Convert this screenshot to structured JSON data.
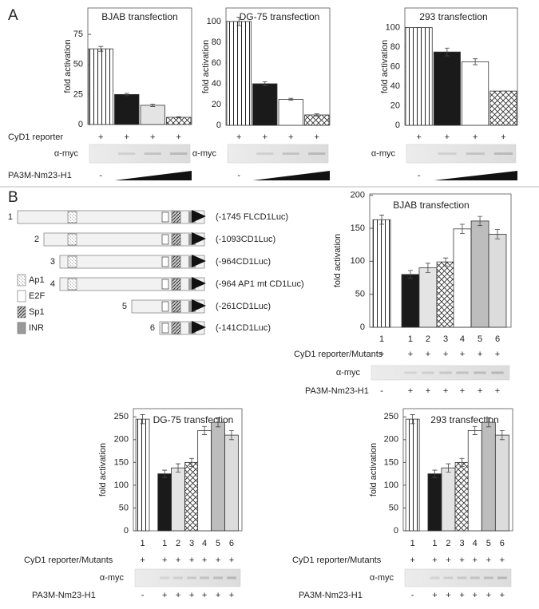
{
  "panel_labels": [
    "A",
    "B"
  ],
  "panel_a": {
    "reporter_label": "CyD1 reporter",
    "nm23_label": "PA3M-Nm23-H1"
  },
  "constructs": [
    {
      "number": "1",
      "label": "(-1745 FLCD1Luc)"
    },
    {
      "number": "2",
      "label": "(-1093CD1Luc)"
    },
    {
      "number": "3",
      "label": "(-964CD1Luc)"
    },
    {
      "number": "4",
      "label": "(-964 AP1 mt CD1Luc)"
    },
    {
      "number": "5",
      "label": "(-261CD1Luc)"
    },
    {
      "number": "6",
      "label": "(-141CD1Luc)"
    }
  ],
  "element_legend": [
    "Ap1",
    "E2F",
    "Sp1",
    "INR"
  ],
  "chart_data": [
    {
      "type": "bar",
      "title": "BJAB transfection",
      "y_label": "fold activation",
      "values": [
        63,
        25,
        16,
        6
      ],
      "errors": [
        2,
        1,
        1,
        0.5
      ],
      "colors": [
        "stripes",
        "#1a1a1a",
        "#e4e4e4",
        "crosshatch"
      ],
      "ylim": [
        0,
        97
      ],
      "yticks": [
        0,
        25,
        50,
        75
      ],
      "reporter_marks": [
        "+",
        "+",
        "+",
        "+"
      ],
      "blot_label": "α-myc",
      "nm23_marks": [
        "-"
      ]
    },
    {
      "type": "bar",
      "title": "DG-75 transfection",
      "y_label": "fold activation",
      "values": [
        100,
        40,
        25,
        10
      ],
      "errors": [
        4,
        2,
        1,
        1
      ],
      "colors": [
        "stripes",
        "#1a1a1a",
        "#ffffff",
        "crosshatch"
      ],
      "ylim": [
        0,
        113
      ],
      "yticks": [
        0,
        20,
        40,
        60,
        80,
        100
      ],
      "reporter_marks": [
        "+",
        "+",
        "+",
        "+"
      ],
      "blot_label": "α-myc",
      "nm23_marks": [
        "-"
      ]
    },
    {
      "type": "bar",
      "title": "293 transfection",
      "y_label": "fold activation",
      "values": [
        100,
        75,
        65,
        35
      ],
      "errors": [
        0,
        4,
        3,
        0
      ],
      "colors": [
        "stripes",
        "#1a1a1a",
        "#ffffff",
        "crosshatch"
      ],
      "ylim": [
        0,
        120
      ],
      "yticks": [
        0,
        20,
        40,
        60,
        80,
        100
      ],
      "reporter_marks": [
        "+",
        "+",
        "+",
        "+"
      ],
      "blot_label": "α-myc",
      "nm23_marks": [
        "-"
      ]
    },
    {
      "type": "bar",
      "title": "BJAB transfection",
      "y_label": "fold activation",
      "categories": [
        "1",
        "1",
        "2",
        "3",
        "4",
        "5",
        "6"
      ],
      "values": [
        163,
        80,
        90,
        99,
        149,
        161,
        141
      ],
      "errors": [
        7,
        6,
        7,
        6,
        7,
        7,
        7
      ],
      "colors": [
        "stripes",
        "#1a1a1a",
        "#e4e4e4",
        "crosshatch",
        "#ffffff",
        "#bdbdbd",
        "#dcdcdc"
      ],
      "ylim": [
        0,
        202
      ],
      "yticks": [
        0,
        50,
        100,
        150,
        200
      ],
      "reporter_label": "CyD1 reporter/Mutants",
      "reporter_marks": [
        "+",
        "+",
        "+",
        "+",
        "+",
        "+",
        "+"
      ],
      "blot_label": "α-myc",
      "nm23_label": "PA3M-Nm23-H1",
      "nm23_marks": [
        "-",
        "+",
        "+",
        "+",
        "+",
        "+",
        "+"
      ]
    },
    {
      "type": "bar",
      "title": "DG-75 transfection",
      "y_label": "fold activation",
      "categories": [
        "1",
        "1",
        "2",
        "3",
        "4",
        "5",
        "6"
      ],
      "values": [
        245,
        125,
        138,
        150,
        220,
        238,
        210
      ],
      "errors": [
        10,
        8,
        9,
        9,
        9,
        10,
        10
      ],
      "colors": [
        "stripes",
        "#1a1a1a",
        "#e4e4e4",
        "crosshatch",
        "#ffffff",
        "#bdbdbd",
        "#dcdcdc"
      ],
      "ylim": [
        0,
        268
      ],
      "yticks": [
        0,
        50,
        100,
        150,
        200,
        250
      ],
      "reporter_label": "CyD1 reporter/Mutants",
      "reporter_marks": [
        "+",
        "+",
        "+",
        "+",
        "+",
        "+",
        "+"
      ],
      "blot_label": "α-myc",
      "nm23_label": "PA3M-Nm23-H1",
      "nm23_marks": [
        "-",
        "+",
        "+",
        "+",
        "+",
        "+",
        "+"
      ]
    },
    {
      "type": "bar",
      "title": "293 transfection",
      "y_label": "fold activation",
      "categories": [
        "1",
        "1",
        "2",
        "3",
        "4",
        "5",
        "6"
      ],
      "values": [
        245,
        125,
        138,
        150,
        220,
        238,
        210
      ],
      "errors": [
        10,
        8,
        9,
        9,
        9,
        10,
        10
      ],
      "colors": [
        "stripes",
        "#1a1a1a",
        "#e4e4e4",
        "crosshatch",
        "#ffffff",
        "#bdbdbd",
        "#dcdcdc"
      ],
      "ylim": [
        0,
        268
      ],
      "yticks": [
        0,
        50,
        100,
        150,
        200,
        250
      ],
      "reporter_label": "CyD1 reporter/Mutants",
      "reporter_marks": [
        "+",
        "+",
        "+",
        "+",
        "+",
        "+",
        "+"
      ],
      "blot_label": "α-myc",
      "nm23_label": "PA3M-Nm23-H1",
      "nm23_marks": [
        "-",
        "+",
        "+",
        "+",
        "+",
        "+",
        "+"
      ]
    }
  ]
}
